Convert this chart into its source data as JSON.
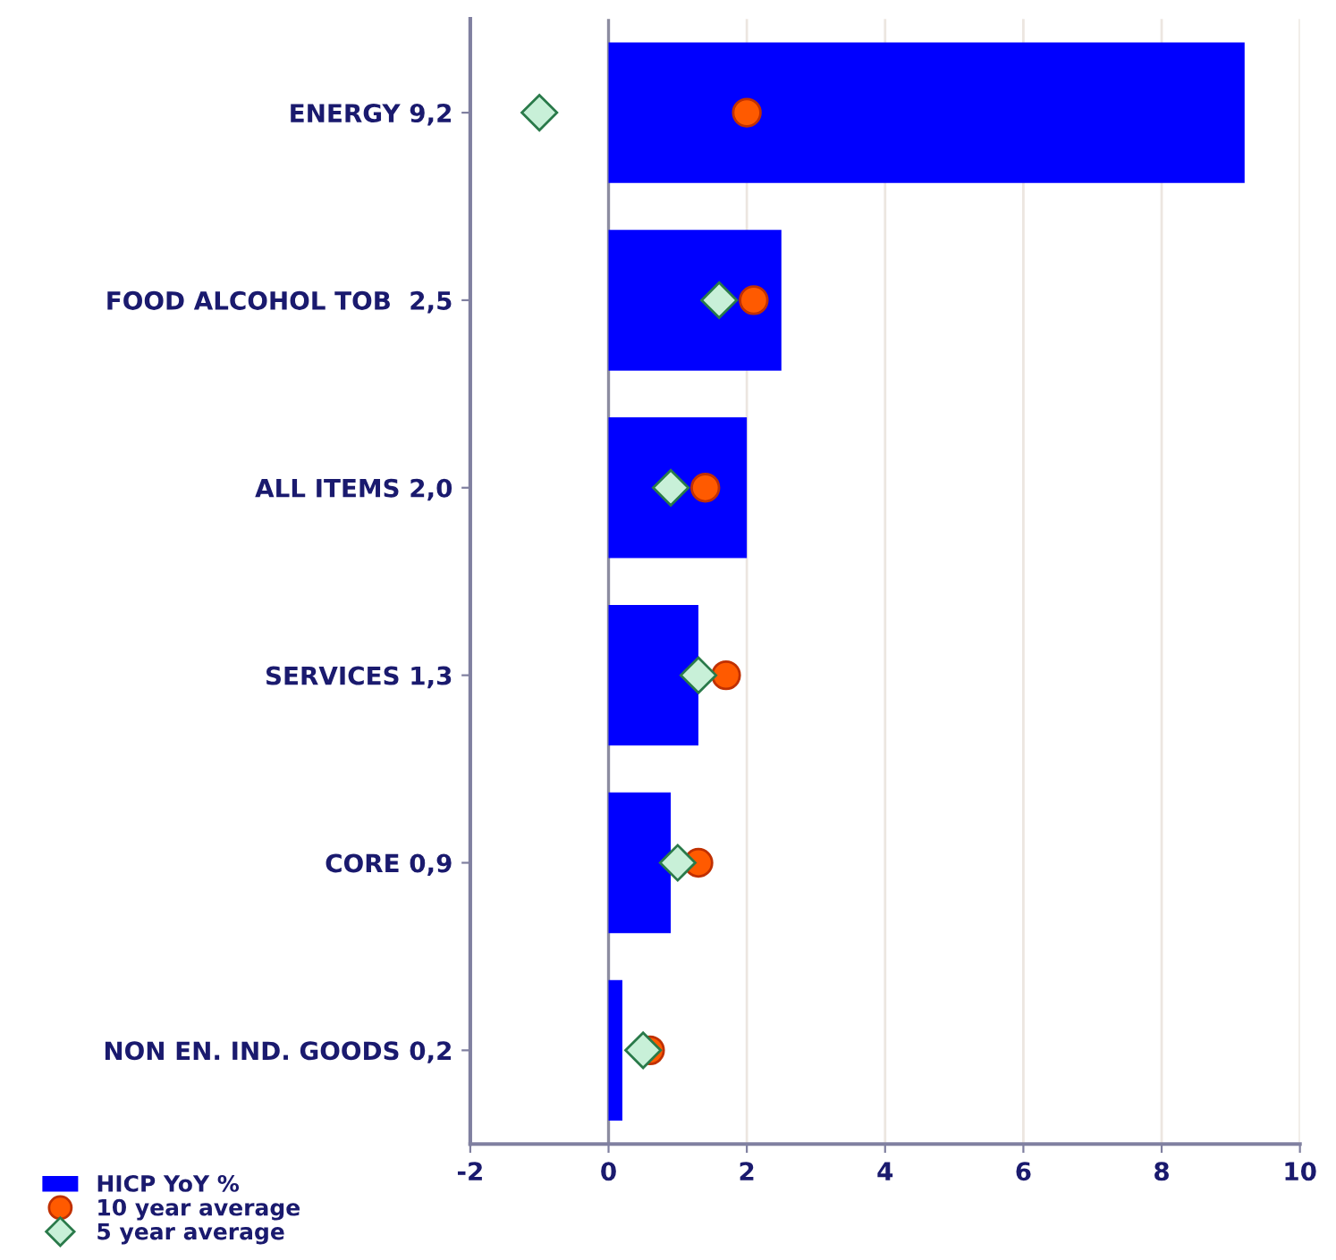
{
  "chart_data": {
    "type": "bar",
    "orientation": "horizontal",
    "categories": [
      "ENERGY 9,2",
      "FOOD ALCOHOL TOB  2,5",
      "ALL ITEMS 2,0",
      "SERVICES 1,3",
      "CORE 0,9",
      "NON EN. IND. GOODS 0,2"
    ],
    "series": [
      {
        "name": "HICP YoY %",
        "color": "#0000ff",
        "values": [
          9.2,
          2.5,
          2.0,
          1.3,
          0.9,
          0.2
        ]
      },
      {
        "name": "10 year average",
        "type": "scatter",
        "marker": "circle",
        "color": "#ff5a00",
        "values": [
          2.0,
          2.1,
          1.4,
          1.7,
          1.3,
          0.6
        ]
      },
      {
        "name": "5 year average",
        "type": "scatter",
        "marker": "diamond",
        "color": "#c8f0d8",
        "values": [
          -1.0,
          1.6,
          0.9,
          1.3,
          1.0,
          0.5
        ]
      }
    ],
    "xlim": [
      -2,
      10
    ],
    "xticks": [
      -2,
      0,
      2,
      4,
      6,
      8,
      10
    ],
    "ref_lines": [
      {
        "axis": "x",
        "value": 0,
        "color": "#8c8ca0"
      }
    ],
    "grid": "x",
    "legend": "bottom left"
  }
}
